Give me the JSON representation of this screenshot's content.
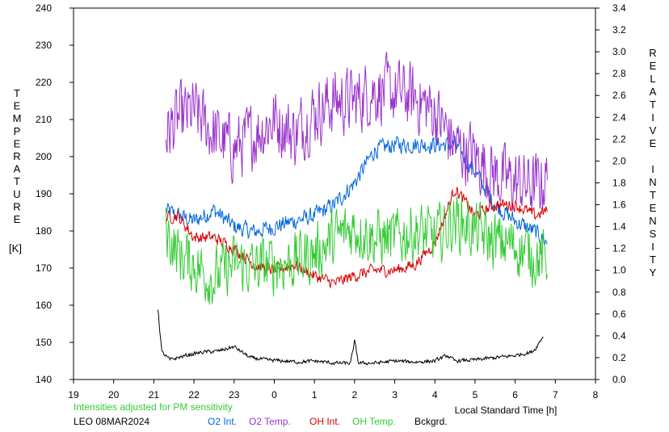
{
  "chart_data": {
    "type": "line",
    "left_axis": {
      "label_letters": [
        "T",
        "E",
        "M",
        "P",
        "E",
        "R",
        "A",
        "T",
        "U",
        "R",
        "E"
      ],
      "unit": "[K]",
      "ylim": [
        140,
        240
      ],
      "ticks": [
        "140",
        "150",
        "160",
        "170",
        "180",
        "190",
        "200",
        "210",
        "220",
        "230",
        "240"
      ]
    },
    "right_axis": {
      "label_word1": [
        "R",
        "E",
        "L",
        "A",
        "T",
        "I",
        "V",
        "E"
      ],
      "label_word2": [
        "I",
        "N",
        "T",
        "E",
        "N",
        "S",
        "I",
        "T",
        "Y"
      ],
      "ylim": [
        0.0,
        3.4
      ],
      "ticks": [
        "0.0",
        "0.2",
        "0.4",
        "0.6",
        "0.8",
        "1.0",
        "1.2",
        "1.4",
        "1.6",
        "1.8",
        "2.0",
        "2.2",
        "2.4",
        "2.6",
        "2.8",
        "3.0",
        "3.2",
        "3.4"
      ]
    },
    "x_axis": {
      "label": "Local Standard Time [h]",
      "ticks": [
        "19",
        "20",
        "21",
        "22",
        "23",
        "0",
        "1",
        "2",
        "3",
        "4",
        "5",
        "6",
        "7",
        "8"
      ],
      "xlim": [
        19,
        32
      ]
    },
    "note": "Intensities adjusted for PM sensitivity",
    "station_date": "LEO 08MAR2024",
    "series": [
      {
        "name": "O2 Int.",
        "color": "#0066dd",
        "axis": "right",
        "x": [
          21.3,
          21.6,
          22.0,
          22.5,
          23.0,
          23.5,
          24.0,
          24.5,
          25.0,
          25.5,
          26.0,
          26.5,
          27.0,
          27.5,
          28.0,
          28.5,
          29.0,
          29.5,
          30.0,
          30.5,
          30.8
        ],
        "y": [
          1.55,
          1.5,
          1.45,
          1.55,
          1.4,
          1.35,
          1.4,
          1.45,
          1.5,
          1.6,
          1.8,
          2.1,
          2.15,
          2.15,
          2.15,
          2.15,
          1.9,
          1.6,
          1.45,
          1.35,
          1.25
        ]
      },
      {
        "name": "O2 Temp.",
        "color": "#9933cc",
        "axis": "left",
        "x": [
          21.3,
          21.6,
          22.0,
          22.5,
          23.0,
          23.5,
          24.0,
          24.5,
          25.0,
          25.5,
          26.0,
          26.5,
          27.0,
          27.5,
          28.0,
          28.5,
          29.0,
          29.5,
          30.0,
          30.5,
          30.8
        ],
        "y": [
          206,
          210,
          212,
          206,
          202,
          206,
          210,
          206,
          212,
          215,
          215,
          218,
          217,
          216,
          212,
          203,
          200,
          195,
          193,
          192,
          194
        ]
      },
      {
        "name": "OH Int.",
        "color": "#dd0000",
        "axis": "right",
        "x": [
          21.3,
          21.6,
          22.0,
          22.5,
          23.0,
          23.5,
          24.0,
          24.5,
          25.0,
          25.5,
          26.0,
          26.5,
          27.0,
          27.5,
          28.0,
          28.5,
          29.0,
          29.5,
          30.0,
          30.5,
          30.8
        ],
        "y": [
          1.48,
          1.5,
          1.3,
          1.3,
          1.2,
          1.05,
          1.0,
          1.05,
          0.95,
          0.88,
          0.95,
          1.0,
          1.0,
          1.05,
          1.25,
          1.75,
          1.5,
          1.6,
          1.6,
          1.5,
          1.55
        ]
      },
      {
        "name": "OH Temp.",
        "color": "#33cc33",
        "axis": "left",
        "x": [
          21.3,
          21.6,
          22.0,
          22.5,
          23.0,
          23.5,
          24.0,
          24.5,
          25.0,
          25.5,
          26.0,
          26.5,
          27.0,
          27.5,
          28.0,
          28.5,
          29.0,
          29.5,
          30.0,
          30.5,
          30.8
        ],
        "y": [
          180,
          174,
          171,
          167,
          171,
          170,
          171,
          172,
          174,
          178,
          181,
          178,
          178,
          180,
          178,
          183,
          180,
          177,
          176,
          173,
          172
        ]
      },
      {
        "name": "Bckgrd.",
        "color": "#000000",
        "axis": "right",
        "x": [
          21.1,
          21.2,
          21.4,
          21.8,
          22.2,
          22.6,
          23.0,
          23.4,
          23.8,
          24.2,
          24.6,
          25.0,
          25.5,
          25.9,
          26.0,
          26.1,
          26.5,
          27.0,
          27.5,
          28.0,
          28.3,
          28.5,
          29.0,
          29.5,
          30.0,
          30.4,
          30.5,
          30.7
        ],
        "y": [
          0.65,
          0.25,
          0.18,
          0.22,
          0.25,
          0.26,
          0.3,
          0.2,
          0.18,
          0.17,
          0.16,
          0.17,
          0.15,
          0.15,
          0.35,
          0.15,
          0.15,
          0.17,
          0.16,
          0.17,
          0.22,
          0.17,
          0.18,
          0.2,
          0.22,
          0.25,
          0.28,
          0.4
        ]
      }
    ]
  }
}
